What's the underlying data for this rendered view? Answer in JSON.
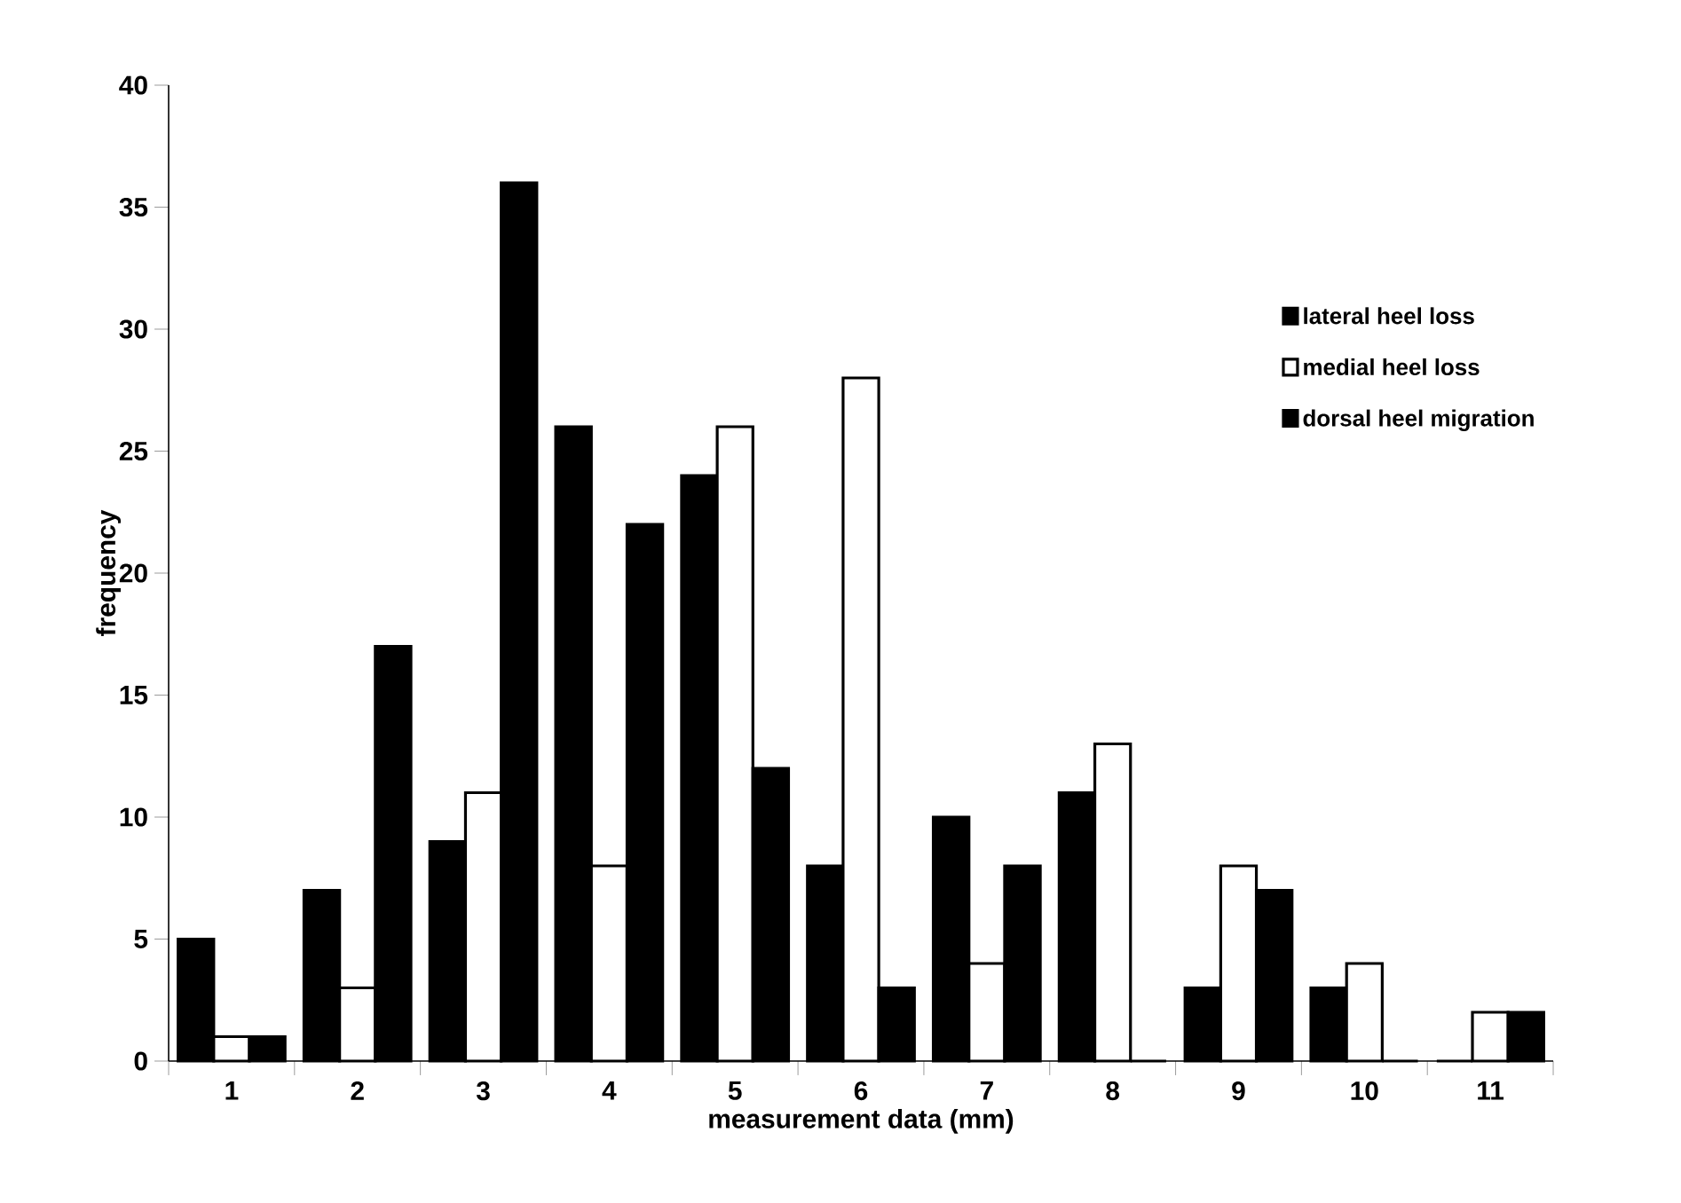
{
  "chart_data": {
    "type": "bar",
    "xlabel": "measurement data (mm)",
    "ylabel": "frequency",
    "categories": [
      "1",
      "2",
      "3",
      "4",
      "5",
      "6",
      "7",
      "8",
      "9",
      "10",
      "11"
    ],
    "series": [
      {
        "name": "lateral heel loss",
        "color": "#000000",
        "values": [
          5,
          7,
          9,
          26,
          24,
          8,
          10,
          11,
          3,
          3,
          0
        ]
      },
      {
        "name": "medial heel loss",
        "color": "#ffffff",
        "values": [
          1,
          3,
          11,
          8,
          26,
          28,
          4,
          13,
          8,
          4,
          2
        ]
      },
      {
        "name": "dorsal heel migration",
        "color": "#000000",
        "values": [
          1,
          17,
          36,
          22,
          12,
          3,
          8,
          0,
          7,
          0,
          2
        ]
      }
    ],
    "ylim": [
      0,
      40
    ],
    "yticks": [
      0,
      5,
      10,
      15,
      20,
      25,
      30,
      35,
      40
    ],
    "grid": false,
    "legend": "right"
  }
}
